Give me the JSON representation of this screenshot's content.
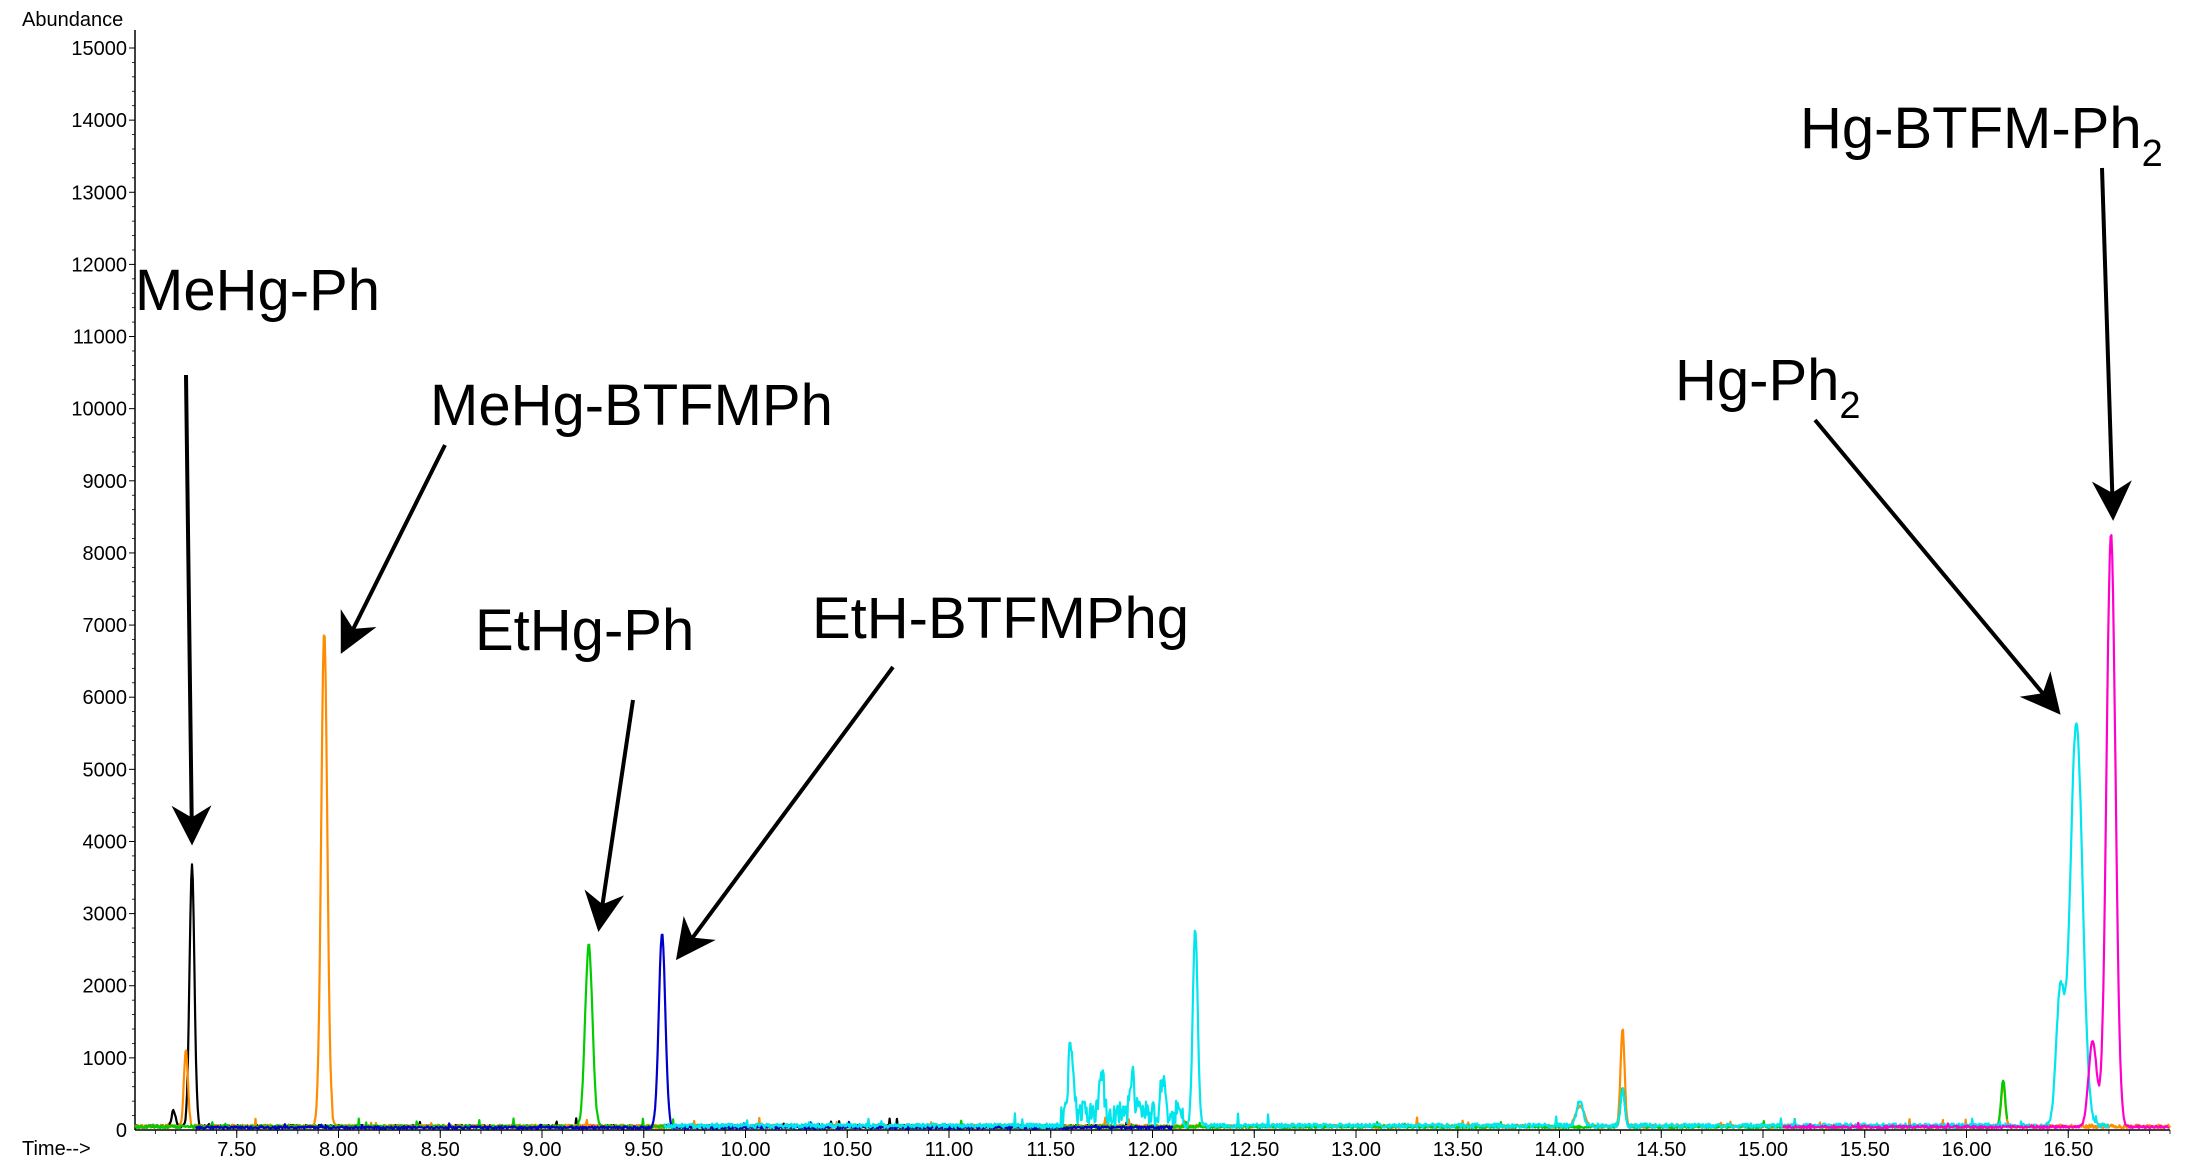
{
  "chart_data": {
    "type": "line",
    "xlabel": "Time-->",
    "ylabel": "Abundance",
    "xlim": [
      7.0,
      17.0
    ],
    "ylim": [
      0,
      15000
    ],
    "x_ticks": [
      "7.50",
      "8.00",
      "8.50",
      "9.00",
      "9.50",
      "10.00",
      "10.50",
      "11.00",
      "11.50",
      "12.00",
      "12.50",
      "13.00",
      "13.50",
      "14.00",
      "14.50",
      "15.00",
      "15.50",
      "16.00",
      "16.50"
    ],
    "y_ticks": [
      "1000",
      "2000",
      "3000",
      "4000",
      "5000",
      "6000",
      "7000",
      "8000",
      "9000",
      "10000",
      "11000",
      "12000",
      "13000",
      "14000",
      "15000"
    ],
    "y_zero_label": "0",
    "grid": false,
    "legend": "none",
    "series": [
      {
        "color": "#000000",
        "baseline": 30,
        "noise": 40,
        "range": [
          7.0,
          11.9
        ],
        "peaks": [
          {
            "x": 7.28,
            "y": 3620,
            "w": 0.012
          },
          {
            "x": 7.19,
            "y": 220,
            "w": 0.01
          }
        ]
      },
      {
        "color": "#ff8c00",
        "baseline": 25,
        "noise": 50,
        "range": [
          7.0,
          17.0
        ],
        "peaks": [
          {
            "x": 7.93,
            "y": 6850,
            "w": 0.015
          },
          {
            "x": 7.25,
            "y": 1050,
            "w": 0.01
          },
          {
            "x": 14.31,
            "y": 1350,
            "w": 0.01
          },
          {
            "x": 16.18,
            "y": 600,
            "w": 0.01
          },
          {
            "x": 14.1,
            "y": 300,
            "w": 0.02
          }
        ]
      },
      {
        "color": "#00cc00",
        "baseline": 25,
        "noise": 40,
        "range": [
          7.0,
          16.2
        ],
        "peaks": [
          {
            "x": 9.23,
            "y": 2520,
            "w": 0.018
          },
          {
            "x": 14.31,
            "y": 550,
            "w": 0.01
          },
          {
            "x": 16.18,
            "y": 650,
            "w": 0.01
          }
        ]
      },
      {
        "color": "#0000cc",
        "baseline": 20,
        "noise": 30,
        "range": [
          7.3,
          12.1
        ],
        "peaks": [
          {
            "x": 9.59,
            "y": 2680,
            "w": 0.016
          }
        ]
      },
      {
        "color": "#00e5ee",
        "baseline": 30,
        "noise": 60,
        "range": [
          9.6,
          16.7
        ],
        "peaks": [
          {
            "x": 11.6,
            "y": 980,
            "w": 0.012
          },
          {
            "x": 11.75,
            "y": 600,
            "w": 0.01
          },
          {
            "x": 11.9,
            "y": 550,
            "w": 0.01
          },
          {
            "x": 12.05,
            "y": 500,
            "w": 0.01
          },
          {
            "x": 12.21,
            "y": 2720,
            "w": 0.012
          },
          {
            "x": 16.54,
            "y": 5600,
            "w": 0.03
          },
          {
            "x": 16.46,
            "y": 1800,
            "w": 0.02
          },
          {
            "x": 14.1,
            "y": 350,
            "w": 0.015
          },
          {
            "x": 14.31,
            "y": 500,
            "w": 0.01
          }
        ],
        "bumps": [
          {
            "from": 11.55,
            "to": 12.15,
            "level": 350
          }
        ]
      },
      {
        "color": "#ff00cc",
        "baseline": 25,
        "noise": 35,
        "range": [
          15.1,
          17.0
        ],
        "peaks": [
          {
            "x": 16.71,
            "y": 8230,
            "w": 0.022
          },
          {
            "x": 16.62,
            "y": 1200,
            "w": 0.02
          }
        ]
      }
    ],
    "annotations": [
      {
        "text": "MeHg-Ph",
        "sub": "",
        "tip_x": 7.28,
        "tip_y": 4000
      },
      {
        "text": "MeHg-BTFMPh",
        "sub": "",
        "tip_x": 8.02,
        "tip_y": 6650
      },
      {
        "text": "EtHg-Ph",
        "sub": "",
        "tip_x": 9.28,
        "tip_y": 2800
      },
      {
        "text": "EtH-BTFMPhg",
        "sub": "",
        "tip_x": 9.67,
        "tip_y": 2400
      },
      {
        "text": "Hg-Ph",
        "sub": "2",
        "tip_x": 16.45,
        "tip_y": 5800
      },
      {
        "text": "Hg-BTFM-Ph",
        "sub": "2",
        "tip_x": 16.72,
        "tip_y": 8500
      }
    ]
  }
}
